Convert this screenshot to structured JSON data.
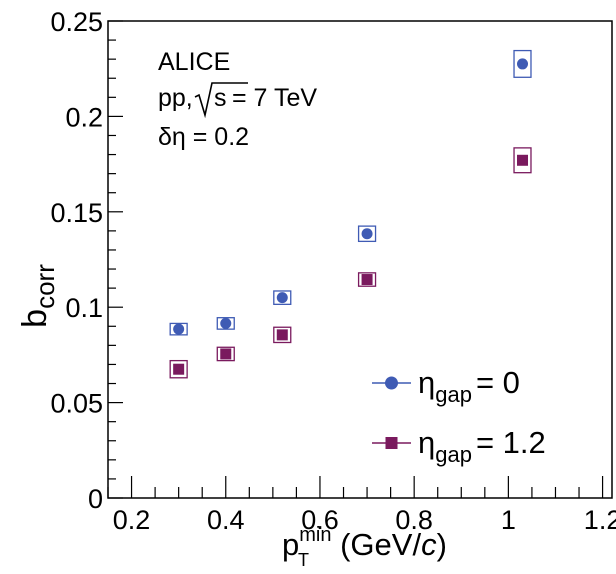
{
  "chart_data": {
    "type": "scatter",
    "annotations": {
      "experiment": "ALICE",
      "system": "pp,",
      "sqrt_symbol": "√",
      "sqrt_arg": "s",
      "energy": "= 7 TeV",
      "delta_eta": "δη = 0.2"
    },
    "xlabel": {
      "main": "p",
      "sub": "T",
      "sup": "min",
      "units_open": " (GeV/",
      "units_italic": "c",
      "units_close": ")"
    },
    "ylabel": {
      "main": "b",
      "sub": "corr"
    },
    "xlim": [
      0.15,
      1.22
    ],
    "ylim": [
      0,
      0.25
    ],
    "x_ticks": [
      0.2,
      0.4,
      0.6,
      0.8,
      1.0,
      1.2
    ],
    "x_tick_labels": [
      "0.2",
      "0.4",
      "0.6",
      "0.8",
      "1",
      "1.2"
    ],
    "y_ticks": [
      0,
      0.05,
      0.1,
      0.15,
      0.2,
      0.25
    ],
    "y_tick_labels": [
      "0",
      "0.05",
      "0.1",
      "0.15",
      "0.2",
      "0.25"
    ],
    "grid": false,
    "legend_position": "bottom-right",
    "series": [
      {
        "name_main": "η",
        "name_sub": "gap",
        "name_value": "= 0",
        "marker": "circle",
        "color": "#3f5bb4",
        "x": [
          0.3,
          0.4,
          0.52,
          0.7,
          1.03
        ],
        "y": [
          0.0885,
          0.0915,
          0.105,
          0.1385,
          0.2275
        ],
        "sys_dx": 0.018,
        "sys_dy": [
          0.003,
          0.003,
          0.0035,
          0.004,
          0.007
        ]
      },
      {
        "name_main": "η",
        "name_sub": "gap",
        "name_value": "= 1.2",
        "marker": "square",
        "color": "#7a1a5e",
        "x": [
          0.3,
          0.4,
          0.52,
          0.7,
          1.03
        ],
        "y": [
          0.0675,
          0.0755,
          0.0855,
          0.1145,
          0.177
        ],
        "sys_dx": 0.018,
        "sys_dy": [
          0.0045,
          0.0035,
          0.004,
          0.0035,
          0.0065
        ]
      }
    ]
  }
}
